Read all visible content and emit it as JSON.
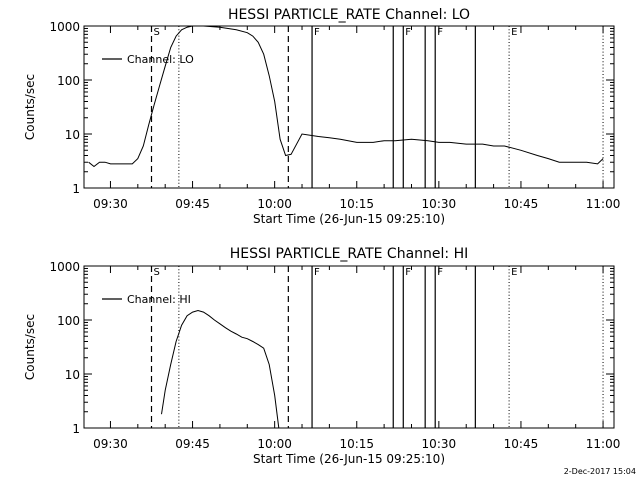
{
  "figure": {
    "footer": "2-Dec-2017 15:04"
  },
  "chart_data": [
    {
      "type": "line",
      "title": "HESSI PARTICLE_RATE Channel: LO",
      "xlabel": "Start Time (26-Jun-15 09:25:10)",
      "ylabel": "Counts/sec",
      "xlim": [
        "09:25:10",
        "11:02:00"
      ],
      "ylim": [
        1,
        1000
      ],
      "yscale": "log",
      "x_ticks": [
        "09:30",
        "09:45",
        "10:00",
        "10:15",
        "10:30",
        "10:45",
        "11:00"
      ],
      "y_ticks": [
        "1",
        "10",
        "100",
        "1000"
      ],
      "legend": {
        "position": "top-left",
        "entries": [
          "Channel: LO"
        ]
      },
      "series": [
        {
          "name": "Channel: LO",
          "x": [
            "09:26",
            "09:27",
            "09:28",
            "09:29",
            "09:30",
            "09:31",
            "09:32",
            "09:34",
            "09:35",
            "09:36",
            "09:37",
            "09:38",
            "09:39",
            "09:40",
            "09:41",
            "09:42",
            "09:43",
            "09:44",
            "09:45",
            "09:47",
            "09:50",
            "09:53",
            "09:55",
            "09:56",
            "09:57",
            "09:58",
            "09:59",
            "10:00",
            "10:01",
            "10:02",
            "10:03",
            "10:05",
            "10:08",
            "10:10",
            "10:12",
            "10:15",
            "10:18",
            "10:20",
            "10:22",
            "10:25",
            "10:28",
            "10:30",
            "10:32",
            "10:35",
            "10:38",
            "10:40",
            "10:42",
            "10:45",
            "10:48",
            "10:50",
            "10:52",
            "10:55",
            "10:57",
            "10:59",
            "11:00"
          ],
          "values": [
            3.0,
            2.5,
            3.0,
            3.0,
            2.8,
            2.8,
            2.8,
            2.8,
            3.5,
            6,
            15,
            35,
            80,
            180,
            400,
            650,
            850,
            950,
            1000,
            1000,
            950,
            850,
            750,
            650,
            500,
            300,
            120,
            40,
            8,
            4,
            4.2,
            10,
            9.0,
            8.5,
            8.0,
            7.0,
            7.0,
            7.5,
            7.5,
            8.0,
            7.5,
            7.0,
            7.0,
            6.5,
            6.5,
            6.0,
            6.0,
            5.0,
            4.0,
            3.5,
            3.0,
            3.0,
            3.0,
            2.8,
            3.5
          ]
        }
      ],
      "markers": [
        {
          "time": "09:37:30",
          "style": "dashed",
          "label": "S"
        },
        {
          "time": "09:42:30",
          "style": "dotted",
          "label": ""
        },
        {
          "time": "10:02:30",
          "style": "dashed",
          "label": ""
        },
        {
          "time": "10:06:50",
          "style": "solid",
          "label": "F"
        },
        {
          "time": "10:21:40",
          "style": "solid",
          "label": ""
        },
        {
          "time": "10:23:30",
          "style": "solid",
          "label": "F"
        },
        {
          "time": "10:27:30",
          "style": "solid",
          "label": ""
        },
        {
          "time": "10:29:20",
          "style": "solid",
          "label": "F"
        },
        {
          "time": "10:36:40",
          "style": "solid",
          "label": ""
        },
        {
          "time": "10:42:50",
          "style": "dotted",
          "label": "E"
        },
        {
          "time": "11:00:00",
          "style": "dotted",
          "label": ""
        }
      ]
    },
    {
      "type": "line",
      "title": "HESSI PARTICLE_RATE Channel: HI",
      "xlabel": "Start Time (26-Jun-15 09:25:10)",
      "ylabel": "Counts/sec",
      "xlim": [
        "09:25:10",
        "11:02:00"
      ],
      "ylim": [
        1,
        1000
      ],
      "yscale": "log",
      "x_ticks": [
        "09:30",
        "09:45",
        "10:00",
        "10:15",
        "10:30",
        "10:45",
        "11:00"
      ],
      "y_ticks": [
        "1",
        "10",
        "100",
        "1000"
      ],
      "legend": {
        "position": "top-left",
        "entries": [
          "Channel: HI"
        ]
      },
      "series": [
        {
          "name": "Channel: HI",
          "x": [
            "09:39:20",
            "09:40",
            "09:41",
            "09:42",
            "09:43",
            "09:44",
            "09:45",
            "09:46",
            "09:47",
            "09:48",
            "09:49",
            "09:50",
            "09:51",
            "09:52",
            "09:53",
            "09:54",
            "09:55",
            "09:56",
            "09:57",
            "09:58",
            "09:59",
            "10:00",
            "10:00:45"
          ],
          "values": [
            1.8,
            5,
            15,
            40,
            80,
            120,
            140,
            150,
            140,
            120,
            100,
            85,
            72,
            62,
            55,
            48,
            45,
            40,
            35,
            30,
            15,
            4,
            1
          ]
        }
      ],
      "markers": [
        {
          "time": "09:37:30",
          "style": "dashed",
          "label": "S"
        },
        {
          "time": "09:42:30",
          "style": "dotted",
          "label": ""
        },
        {
          "time": "10:02:30",
          "style": "dashed",
          "label": ""
        },
        {
          "time": "10:06:50",
          "style": "solid",
          "label": "F"
        },
        {
          "time": "10:21:40",
          "style": "solid",
          "label": ""
        },
        {
          "time": "10:23:30",
          "style": "solid",
          "label": "F"
        },
        {
          "time": "10:27:30",
          "style": "solid",
          "label": ""
        },
        {
          "time": "10:29:20",
          "style": "solid",
          "label": "F"
        },
        {
          "time": "10:36:40",
          "style": "solid",
          "label": ""
        },
        {
          "time": "10:42:50",
          "style": "dotted",
          "label": "E"
        },
        {
          "time": "11:00:00",
          "style": "dotted",
          "label": ""
        }
      ]
    }
  ]
}
